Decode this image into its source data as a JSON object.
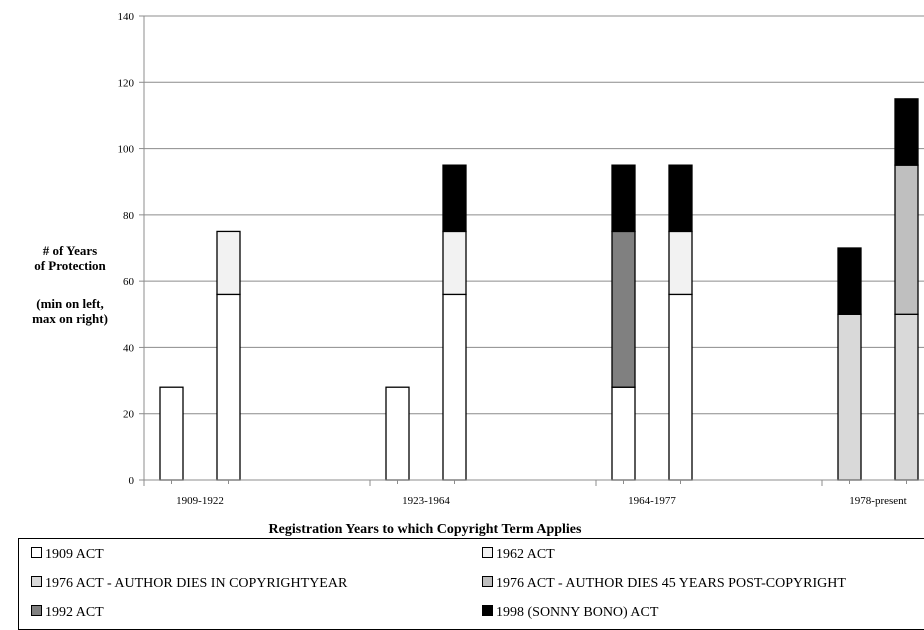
{
  "chart_data": {
    "type": "bar",
    "stacked": true,
    "title": "",
    "ylabel_lines": [
      "# of Years",
      "of Protection"
    ],
    "ylabel_note_lines": [
      "(min on left,",
      "max on right)"
    ],
    "xlabel": "Registration Years to which Copyright Term Applies",
    "ylim": [
      0,
      140
    ],
    "yticks": [
      0,
      20,
      40,
      60,
      80,
      100,
      120,
      140
    ],
    "grid": true,
    "legend_position": "bottom",
    "categories": [
      "1909-1922",
      "1923-1964",
      "1964-1977",
      "1978-present"
    ],
    "bars": [
      {
        "category": "1909-1922",
        "which": "min",
        "segments": [
          {
            "series": "1909 ACT",
            "value": 28
          }
        ]
      },
      {
        "category": "1909-1922",
        "which": "max",
        "segments": [
          {
            "series": "1909 ACT",
            "value": 56
          },
          {
            "series": "1962 ACT",
            "value": 19
          }
        ]
      },
      {
        "category": "1923-1964",
        "which": "min",
        "segments": [
          {
            "series": "1909 ACT",
            "value": 28
          }
        ]
      },
      {
        "category": "1923-1964",
        "which": "max",
        "segments": [
          {
            "series": "1909 ACT",
            "value": 56
          },
          {
            "series": "1962 ACT",
            "value": 19
          },
          {
            "series": "1998 (SONNY BONO) ACT",
            "value": 20
          }
        ]
      },
      {
        "category": "1964-1977",
        "which": "min",
        "segments": [
          {
            "series": "1909 ACT",
            "value": 28
          },
          {
            "series": "1992 ACT",
            "value": 47
          },
          {
            "series": "1998 (SONNY BONO) ACT",
            "value": 20
          }
        ]
      },
      {
        "category": "1964-1977",
        "which": "max",
        "segments": [
          {
            "series": "1909 ACT",
            "value": 56
          },
          {
            "series": "1962 ACT",
            "value": 19
          },
          {
            "series": "1998 (SONNY BONO) ACT",
            "value": 20
          }
        ]
      },
      {
        "category": "1978-present",
        "which": "min",
        "segments": [
          {
            "series": "1976 ACT - AUTHOR DIES IN COPYRIGHTYEAR",
            "value": 50
          },
          {
            "series": "1998 (SONNY BONO) ACT",
            "value": 20
          }
        ]
      },
      {
        "category": "1978-present",
        "which": "max",
        "segments": [
          {
            "series": "1976 ACT - AUTHOR DIES IN COPYRIGHTYEAR",
            "value": 50
          },
          {
            "series": "1976 ACT - AUTHOR DIES 45 YEARS POST-COPYRIGHT",
            "value": 45
          },
          {
            "series": "1998 (SONNY BONO) ACT",
            "value": 20
          }
        ]
      }
    ],
    "series": [
      {
        "name": "1909 ACT",
        "color": "#ffffff"
      },
      {
        "name": "1962 ACT",
        "color": "#f2f2f2"
      },
      {
        "name": "1976 ACT - AUTHOR DIES IN COPYRIGHTYEAR",
        "color": "#d9d9d9"
      },
      {
        "name": "1976 ACT - AUTHOR DIES 45 YEARS POST-COPYRIGHT",
        "color": "#bfbfbf"
      },
      {
        "name": "1992 ACT",
        "color": "#808080"
      },
      {
        "name": "1998 (SONNY BONO) ACT",
        "color": "#000000"
      }
    ]
  }
}
